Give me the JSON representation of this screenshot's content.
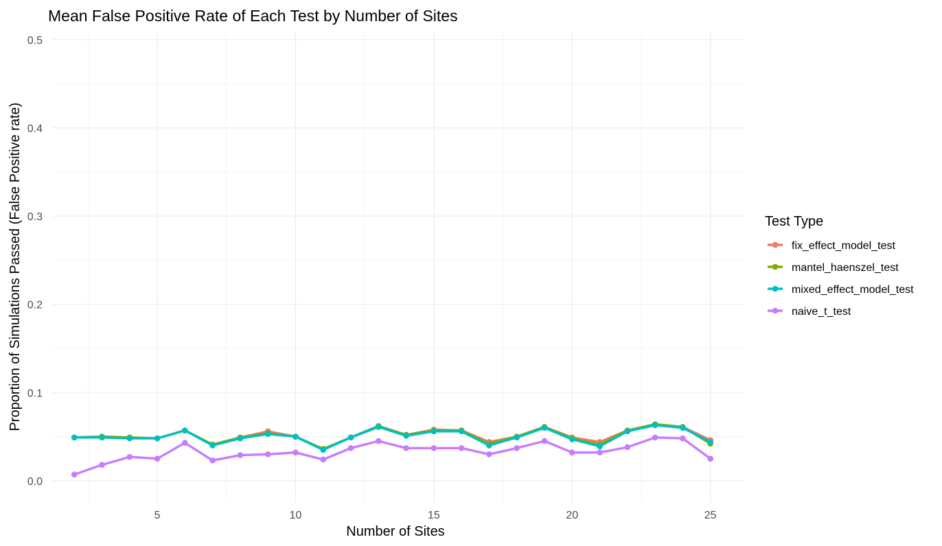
{
  "chart_data": {
    "type": "line",
    "title": "Mean False Positive Rate of Each Test by Number of Sites",
    "xlabel": "Number of Sites",
    "ylabel": "Proportion of Simulations Passed (False Positive rate)",
    "xlim": [
      1.2,
      26.2
    ],
    "ylim": [
      -0.025,
      0.51
    ],
    "xticks": [
      5,
      10,
      15,
      20,
      25
    ],
    "yticks": [
      0.0,
      0.1,
      0.2,
      0.3,
      0.4,
      0.5
    ],
    "ytick_labels": [
      "0.0",
      "0.1",
      "0.2",
      "0.3",
      "0.4",
      "0.5"
    ],
    "grid": true,
    "legend": {
      "title": "Test Type",
      "position": "right"
    },
    "x": [
      2,
      3,
      4,
      5,
      6,
      7,
      8,
      9,
      10,
      11,
      12,
      13,
      14,
      15,
      16,
      17,
      18,
      19,
      20,
      21,
      22,
      23,
      24,
      25
    ],
    "series": [
      {
        "name": "fix_effect_model_test",
        "color": "#F8766D",
        "values": [
          0.049,
          0.05,
          0.049,
          0.048,
          0.057,
          0.041,
          0.049,
          0.056,
          0.05,
          0.036,
          0.049,
          0.062,
          0.052,
          0.058,
          0.057,
          0.044,
          0.05,
          0.061,
          0.049,
          0.044,
          0.057,
          0.064,
          0.061,
          0.046
        ]
      },
      {
        "name": "mantel_haenszel_test",
        "color": "#7CAE00",
        "values": [
          0.049,
          0.05,
          0.049,
          0.048,
          0.057,
          0.041,
          0.049,
          0.054,
          0.05,
          0.036,
          0.049,
          0.062,
          0.052,
          0.057,
          0.057,
          0.042,
          0.05,
          0.061,
          0.048,
          0.041,
          0.057,
          0.064,
          0.061,
          0.042
        ]
      },
      {
        "name": "mixed_effect_model_test",
        "color": "#00BFC4",
        "values": [
          0.049,
          0.049,
          0.048,
          0.048,
          0.057,
          0.04,
          0.048,
          0.053,
          0.05,
          0.035,
          0.049,
          0.061,
          0.051,
          0.056,
          0.056,
          0.04,
          0.049,
          0.06,
          0.047,
          0.039,
          0.056,
          0.063,
          0.06,
          0.044
        ]
      },
      {
        "name": "naive_t_test",
        "color": "#C77CFF",
        "values": [
          0.007,
          0.018,
          0.027,
          0.025,
          0.043,
          0.023,
          0.029,
          0.03,
          0.032,
          0.024,
          0.037,
          0.045,
          0.037,
          0.037,
          0.037,
          0.03,
          0.037,
          0.045,
          0.032,
          0.032,
          0.038,
          0.049,
          0.048,
          0.025
        ]
      }
    ]
  }
}
